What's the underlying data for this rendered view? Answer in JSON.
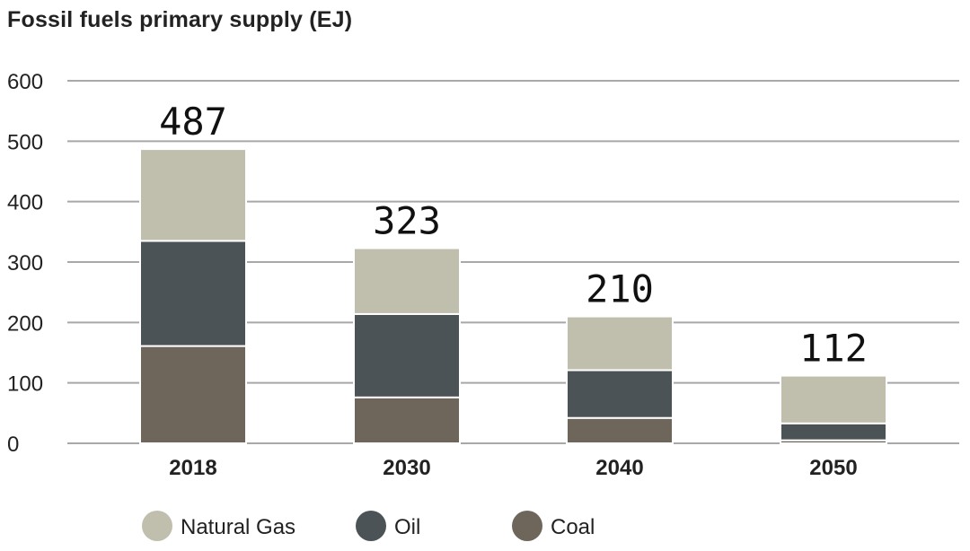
{
  "chart_data": {
    "type": "bar",
    "stacked": true,
    "title": "Fossil fuels primary supply (EJ)",
    "xlabel": "",
    "ylabel": "",
    "ylim": [
      0,
      600
    ],
    "yticks": [
      0,
      100,
      200,
      300,
      400,
      500,
      600
    ],
    "categories": [
      "2018",
      "2030",
      "2040",
      "2050"
    ],
    "series": [
      {
        "name": "Coal",
        "color": "#6e655b",
        "values": [
          161,
          76,
          42,
          5
        ]
      },
      {
        "name": "Oil",
        "color": "#4b5356",
        "values": [
          174,
          138,
          79,
          28
        ]
      },
      {
        "name": "Natural Gas",
        "color": "#c0bfae",
        "values": [
          152,
          109,
          89,
          79
        ]
      }
    ],
    "totals": [
      "487",
      "323",
      "210",
      "112"
    ],
    "legend": [
      {
        "label": "Natural Gas",
        "color": "#c0bfae"
      },
      {
        "label": "Oil",
        "color": "#4b5356"
      },
      {
        "label": "Coal",
        "color": "#6e655b"
      }
    ],
    "legend_position": "bottom",
    "grid": true
  }
}
